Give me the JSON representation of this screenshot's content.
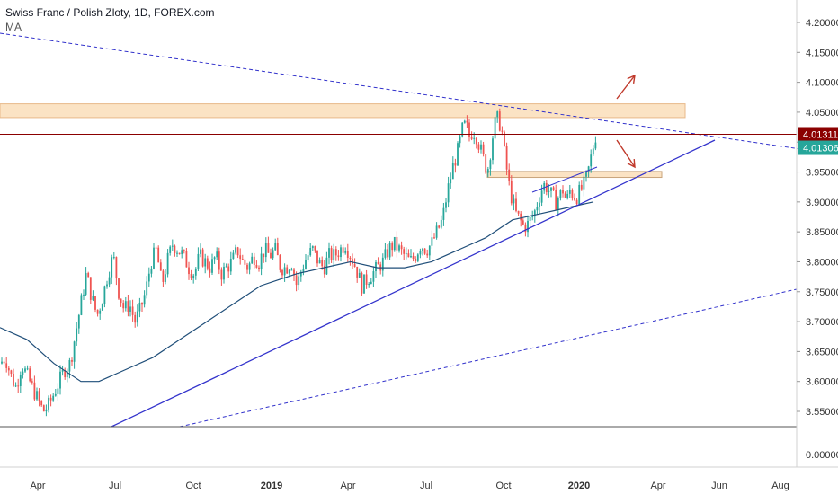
{
  "header": {
    "title": "Swiss Franc / Polish Zloty, 1D, FOREX.com",
    "indicator": "MA"
  },
  "colors": {
    "up": "#26a69a",
    "down": "#ef5350",
    "ma": "#1f4e79",
    "trend": "#3333cc",
    "resistance": "#8b0000",
    "zone": "#fbe3c4",
    "zoneBorder": "#e8b98a",
    "lastPrice": "#26a69a",
    "horizontal": "#8b0000"
  },
  "price_axis": {
    "ticks": [
      "4.20000",
      "4.15000",
      "4.10000",
      "4.05000",
      "4.00000",
      "3.95000",
      "3.90000",
      "3.85000",
      "3.80000",
      "3.75000",
      "3.70000",
      "3.65000",
      "3.60000",
      "3.55000"
    ],
    "lower_tick": "0.00000",
    "line_price_label": "4.01311",
    "last_price_label": "4.01306"
  },
  "time_axis": {
    "labels": [
      "Apr",
      "Jul",
      "Oct",
      "2019",
      "Apr",
      "Jul",
      "Oct",
      "2020",
      "Apr",
      "Jun",
      "Aug"
    ],
    "bold": [
      "2019",
      "2020"
    ]
  },
  "chart_data": {
    "type": "candlestick",
    "title": "Swiss Franc / Polish Zloty, 1D, FOREX.com",
    "ylim": [
      3.53,
      4.23
    ],
    "y_ticks": [
      3.55,
      3.6,
      3.65,
      3.7,
      3.75,
      3.8,
      3.85,
      3.9,
      3.95,
      4.0,
      4.05,
      4.1,
      4.15,
      4.2
    ],
    "x_ticks": [
      "Apr",
      "Jul",
      "Oct",
      "2019",
      "Apr",
      "Jul",
      "Oct",
      "2020",
      "Apr",
      "Jun",
      "Aug"
    ],
    "close_path": [
      [
        0,
        3.63
      ],
      [
        6,
        3.64
      ],
      [
        12,
        3.61
      ],
      [
        18,
        3.59
      ],
      [
        24,
        3.63
      ],
      [
        30,
        3.61
      ],
      [
        36,
        3.59
      ],
      [
        42,
        3.57
      ],
      [
        48,
        3.55
      ],
      [
        54,
        3.56
      ],
      [
        60,
        3.58
      ],
      [
        66,
        3.6
      ],
      [
        72,
        3.62
      ],
      [
        78,
        3.63
      ],
      [
        84,
        3.68
      ],
      [
        90,
        3.73
      ],
      [
        96,
        3.78
      ],
      [
        102,
        3.74
      ],
      [
        108,
        3.71
      ],
      [
        114,
        3.74
      ],
      [
        120,
        3.78
      ],
      [
        126,
        3.81
      ],
      [
        132,
        3.75
      ],
      [
        138,
        3.72
      ],
      [
        144,
        3.73
      ],
      [
        150,
        3.7
      ],
      [
        156,
        3.72
      ],
      [
        162,
        3.75
      ],
      [
        168,
        3.8
      ],
      [
        174,
        3.82
      ],
      [
        180,
        3.76
      ],
      [
        186,
        3.8
      ],
      [
        192,
        3.83
      ],
      [
        198,
        3.82
      ],
      [
        204,
        3.81
      ],
      [
        210,
        3.79
      ],
      [
        216,
        3.78
      ],
      [
        222,
        3.81
      ],
      [
        228,
        3.8
      ],
      [
        234,
        3.79
      ],
      [
        240,
        3.81
      ],
      [
        246,
        3.78
      ],
      [
        252,
        3.79
      ],
      [
        258,
        3.8
      ],
      [
        264,
        3.82
      ],
      [
        270,
        3.8
      ],
      [
        276,
        3.79
      ],
      [
        282,
        3.81
      ],
      [
        288,
        3.8
      ],
      [
        294,
        3.82
      ],
      [
        300,
        3.81
      ],
      [
        306,
        3.82
      ],
      [
        312,
        3.79
      ],
      [
        318,
        3.79
      ],
      [
        324,
        3.8
      ],
      [
        330,
        3.76
      ],
      [
        336,
        3.79
      ],
      [
        342,
        3.81
      ],
      [
        348,
        3.82
      ],
      [
        354,
        3.8
      ],
      [
        360,
        3.79
      ],
      [
        366,
        3.81
      ],
      [
        372,
        3.81
      ],
      [
        378,
        3.82
      ],
      [
        384,
        3.83
      ],
      [
        390,
        3.81
      ],
      [
        396,
        3.79
      ],
      [
        402,
        3.76
      ],
      [
        408,
        3.77
      ],
      [
        414,
        3.78
      ],
      [
        420,
        3.79
      ],
      [
        426,
        3.8
      ],
      [
        432,
        3.82
      ],
      [
        438,
        3.83
      ],
      [
        444,
        3.82
      ],
      [
        450,
        3.81
      ],
      [
        456,
        3.8
      ],
      [
        462,
        3.81
      ],
      [
        468,
        3.83
      ],
      [
        474,
        3.82
      ],
      [
        480,
        3.83
      ],
      [
        486,
        3.85
      ],
      [
        492,
        3.87
      ],
      [
        498,
        3.92
      ],
      [
        504,
        3.96
      ],
      [
        510,
        3.99
      ],
      [
        514,
        4.02
      ],
      [
        518,
        4.03
      ],
      [
        522,
        4.01
      ],
      [
        526,
        4.02
      ],
      [
        530,
        4.01
      ],
      [
        534,
        3.99
      ],
      [
        538,
        3.97
      ],
      [
        542,
        3.95
      ],
      [
        546,
        3.99
      ],
      [
        550,
        4.03
      ],
      [
        554,
        4.04
      ],
      [
        558,
        4.02
      ],
      [
        562,
        3.97
      ],
      [
        566,
        3.93
      ],
      [
        570,
        3.9
      ],
      [
        574,
        3.88
      ],
      [
        578,
        3.87
      ],
      [
        582,
        3.86
      ],
      [
        586,
        3.86
      ],
      [
        590,
        3.87
      ],
      [
        594,
        3.88
      ],
      [
        598,
        3.9
      ],
      [
        602,
        3.92
      ],
      [
        606,
        3.93
      ],
      [
        610,
        3.92
      ],
      [
        614,
        3.91
      ],
      [
        618,
        3.9
      ],
      [
        622,
        3.91
      ],
      [
        626,
        3.92
      ],
      [
        630,
        3.9
      ],
      [
        634,
        3.92
      ],
      [
        638,
        3.91
      ],
      [
        642,
        3.91
      ],
      [
        646,
        3.92
      ],
      [
        650,
        3.93
      ],
      [
        654,
        3.95
      ],
      [
        658,
        3.98
      ],
      [
        662,
        4.01
      ],
      [
        664,
        4.013
      ]
    ],
    "moving_average": [
      [
        0,
        3.69
      ],
      [
        30,
        3.67
      ],
      [
        60,
        3.63
      ],
      [
        90,
        3.6
      ],
      [
        110,
        3.6
      ],
      [
        140,
        3.62
      ],
      [
        170,
        3.64
      ],
      [
        200,
        3.67
      ],
      [
        230,
        3.7
      ],
      [
        260,
        3.73
      ],
      [
        290,
        3.76
      ],
      [
        310,
        3.77
      ],
      [
        330,
        3.78
      ],
      [
        360,
        3.79
      ],
      [
        390,
        3.8
      ],
      [
        420,
        3.79
      ],
      [
        450,
        3.79
      ],
      [
        480,
        3.8
      ],
      [
        510,
        3.82
      ],
      [
        540,
        3.84
      ],
      [
        570,
        3.87
      ],
      [
        600,
        3.88
      ],
      [
        630,
        3.89
      ],
      [
        660,
        3.9
      ]
    ],
    "resistance_zone": [
      4.041,
      4.064
    ],
    "support_zone": [
      3.941,
      3.951
    ],
    "horizontal_level": 4.01311,
    "last_price": 4.01306
  }
}
